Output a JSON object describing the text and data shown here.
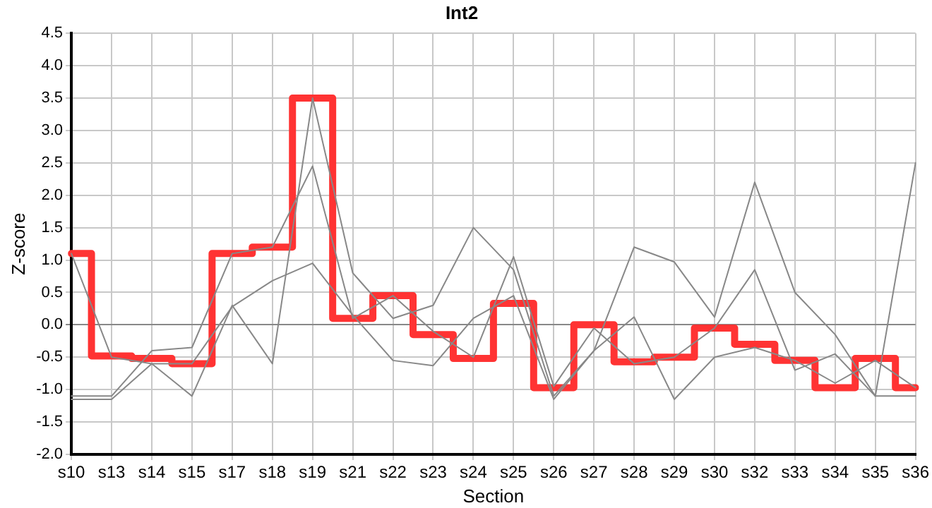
{
  "chart_data": {
    "type": "line",
    "title": "Int2",
    "xlabel": "Section",
    "ylabel": "Z-score",
    "categories": [
      "s10",
      "s13",
      "s14",
      "s15",
      "s17",
      "s18",
      "s19",
      "s21",
      "s22",
      "s23",
      "s24",
      "s25",
      "s26",
      "s27",
      "s28",
      "s29",
      "s30",
      "s32",
      "s33",
      "s34",
      "s35",
      "s36"
    ],
    "series": [
      {
        "type": "line",
        "color": "#888888",
        "values": [
          1.1,
          -0.5,
          -0.6,
          -1.1,
          0.3,
          -0.6,
          3.5,
          0.8,
          0.1,
          0.3,
          1.5,
          0.85,
          -1.1,
          -0.4,
          1.2,
          0.97,
          0.12,
          2.2,
          0.5,
          -0.15,
          -1.1,
          2.5
        ]
      },
      {
        "type": "line",
        "color": "#888888",
        "values": [
          -1.1,
          -1.1,
          -0.4,
          -0.35,
          1.1,
          1.2,
          2.45,
          0.1,
          0.45,
          -0.1,
          -0.5,
          1.05,
          -0.95,
          -0.05,
          -0.6,
          -0.5,
          -0.05,
          0.85,
          -0.7,
          -0.45,
          -1.1,
          -1.1
        ]
      },
      {
        "type": "line",
        "color": "#888888",
        "values": [
          -1.15,
          -1.15,
          -0.6,
          -0.6,
          0.28,
          0.68,
          0.95,
          0.15,
          -0.55,
          -0.63,
          0.1,
          0.45,
          -1.15,
          -0.4,
          0.12,
          -1.15,
          -0.5,
          -0.35,
          -0.55,
          -0.9,
          -0.55,
          -0.97
        ]
      },
      {
        "type": "step",
        "color": "#ff3333",
        "values": [
          1.1,
          -0.48,
          -0.52,
          -0.6,
          1.1,
          1.2,
          3.5,
          0.1,
          0.45,
          -0.15,
          -0.52,
          0.33,
          -0.97,
          0,
          -0.57,
          -0.5,
          -0.05,
          -0.3,
          -0.55,
          -0.97,
          -0.52,
          -0.97
        ]
      }
    ],
    "ylim": [
      -2,
      4.5
    ],
    "yticks": [
      {
        "value": -2,
        "label": "-2.0"
      },
      {
        "value": -1.5,
        "label": "-1.5"
      },
      {
        "value": -1,
        "label": "-1.0"
      },
      {
        "value": -0.5,
        "label": "-0.5"
      },
      {
        "value": 0,
        "label": "0.0"
      },
      {
        "value": 0.5,
        "label": "0.5"
      },
      {
        "value": 1,
        "label": "1.0"
      },
      {
        "value": 1.5,
        "label": "1.5"
      },
      {
        "value": 2,
        "label": "2.0"
      },
      {
        "value": 2.5,
        "label": "2.5"
      },
      {
        "value": 3,
        "label": "3.0"
      },
      {
        "value": 3.5,
        "label": "3.5"
      },
      {
        "value": 4,
        "label": "4.0"
      },
      {
        "value": 4.5,
        "label": "4.5"
      }
    ],
    "grid": true,
    "legend": false,
    "marker": "none"
  }
}
